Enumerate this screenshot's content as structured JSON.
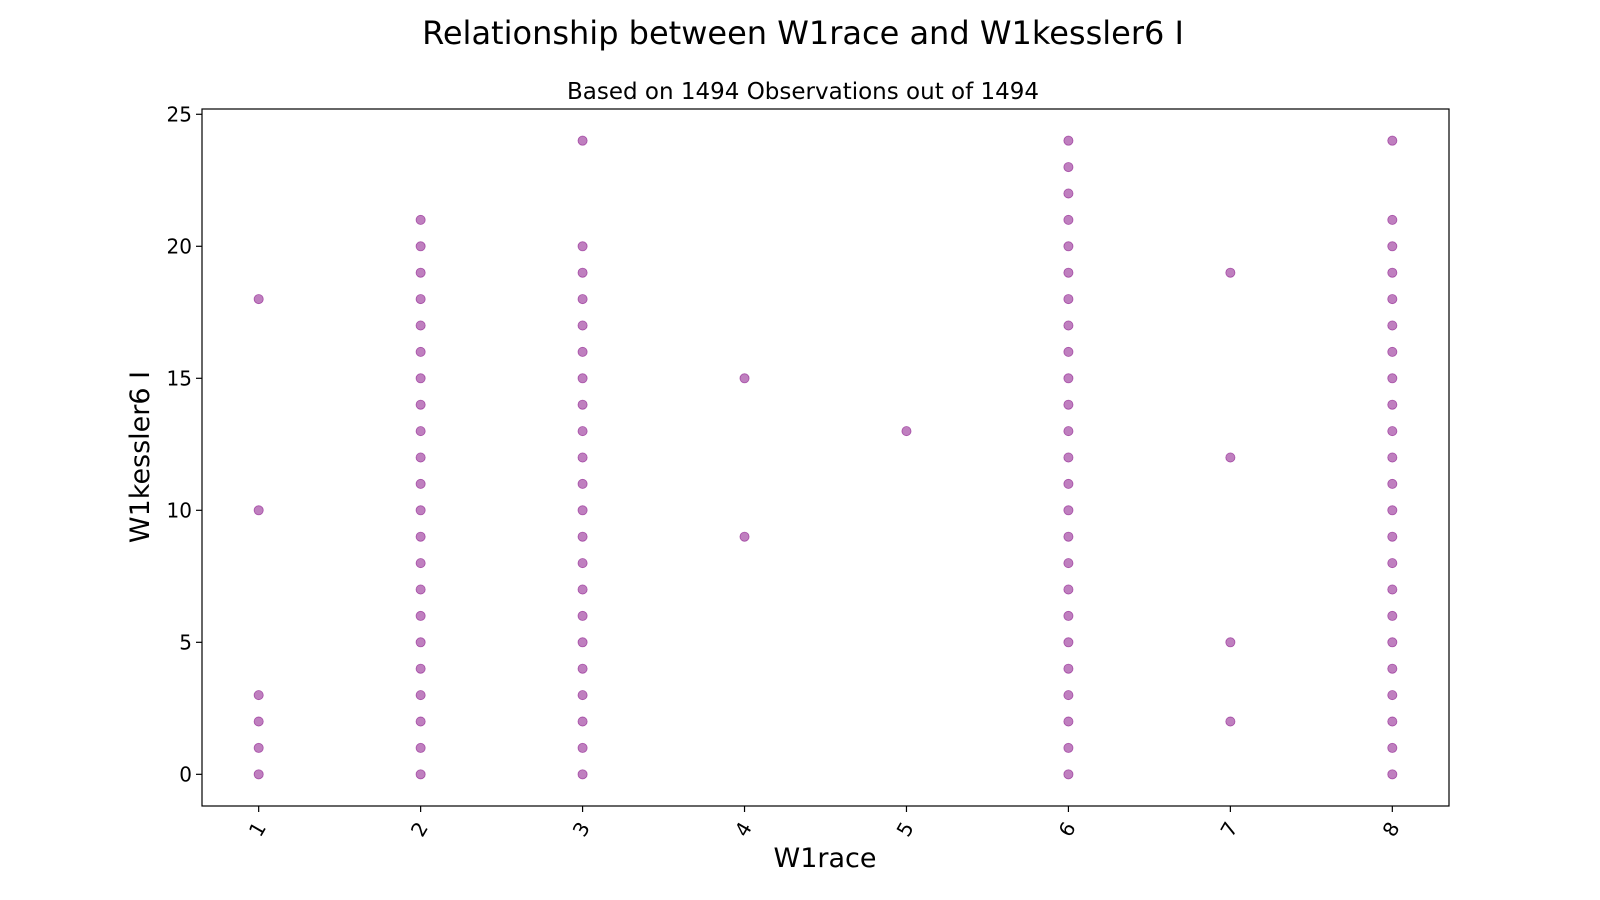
{
  "chart_data": {
    "type": "scatter",
    "title": "Relationship between W1race and W1kessler6 I",
    "subtitle": "Based on 1494 Observations out of 1494",
    "xlabel": "W1race",
    "ylabel": "W1kessler6 I",
    "x_ticks": [
      "1",
      "2",
      "3",
      "4",
      "5",
      "6",
      "7",
      "8"
    ],
    "y_ticks": [
      "0",
      "5",
      "10",
      "15",
      "20",
      "25"
    ],
    "xlim": [
      0.65,
      8.35
    ],
    "ylim": [
      -1.2,
      25.2
    ],
    "grid": false,
    "marker_color": "#800080",
    "points": [
      {
        "x": 1,
        "y": [
          0,
          1,
          2,
          3,
          10,
          18
        ]
      },
      {
        "x": 2,
        "y": [
          0,
          1,
          2,
          3,
          4,
          5,
          6,
          7,
          8,
          9,
          10,
          11,
          12,
          13,
          14,
          15,
          16,
          17,
          18,
          19,
          20,
          21
        ]
      },
      {
        "x": 3,
        "y": [
          0,
          1,
          2,
          3,
          4,
          5,
          6,
          7,
          8,
          9,
          10,
          11,
          12,
          13,
          14,
          15,
          16,
          17,
          18,
          19,
          20,
          24
        ]
      },
      {
        "x": 4,
        "y": [
          9,
          15
        ]
      },
      {
        "x": 5,
        "y": [
          13
        ]
      },
      {
        "x": 6,
        "y": [
          0,
          1,
          2,
          3,
          4,
          5,
          6,
          7,
          8,
          9,
          10,
          11,
          12,
          13,
          14,
          15,
          16,
          17,
          18,
          19,
          20,
          21,
          22,
          23,
          24
        ]
      },
      {
        "x": 7,
        "y": [
          2,
          5,
          12,
          19
        ]
      },
      {
        "x": 8,
        "y": [
          0,
          1,
          2,
          3,
          4,
          5,
          6,
          7,
          8,
          9,
          10,
          11,
          12,
          13,
          14,
          15,
          16,
          17,
          18,
          19,
          20,
          21,
          24
        ]
      }
    ]
  }
}
